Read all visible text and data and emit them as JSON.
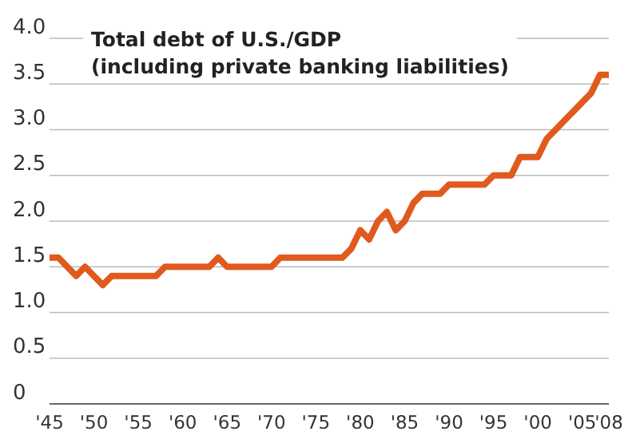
{
  "chart_data": {
    "type": "line",
    "title": "Total debt of U.S./GDP",
    "subtitle": "(including private banking liabilities)",
    "x": [
      1945,
      1946,
      1947,
      1948,
      1949,
      1950,
      1951,
      1952,
      1953,
      1954,
      1955,
      1956,
      1957,
      1958,
      1959,
      1960,
      1961,
      1962,
      1963,
      1964,
      1965,
      1966,
      1967,
      1968,
      1969,
      1970,
      1971,
      1972,
      1973,
      1974,
      1975,
      1976,
      1977,
      1978,
      1979,
      1980,
      1981,
      1982,
      1983,
      1984,
      1985,
      1986,
      1987,
      1988,
      1989,
      1990,
      1991,
      1992,
      1993,
      1994,
      1995,
      1996,
      1997,
      1998,
      1999,
      2000,
      2001,
      2002,
      2003,
      2004,
      2005,
      2006,
      2007,
      2008
    ],
    "series": [
      {
        "color": "#e05a1e",
        "values": [
          1.6,
          1.6,
          1.5,
          1.4,
          1.5,
          1.4,
          1.3,
          1.4,
          1.4,
          1.4,
          1.4,
          1.4,
          1.4,
          1.5,
          1.5,
          1.5,
          1.5,
          1.5,
          1.5,
          1.6,
          1.5,
          1.5,
          1.5,
          1.5,
          1.5,
          1.5,
          1.6,
          1.6,
          1.6,
          1.6,
          1.6,
          1.6,
          1.6,
          1.6,
          1.7,
          1.9,
          1.8,
          2.0,
          2.1,
          1.9,
          2.0,
          2.2,
          2.3,
          2.3,
          2.3,
          2.4,
          2.4,
          2.4,
          2.4,
          2.4,
          2.5,
          2.5,
          2.5,
          2.7,
          2.7,
          2.7,
          2.9,
          3.0,
          3.1,
          3.2,
          3.3,
          3.4,
          3.6,
          3.6
        ]
      }
    ],
    "xlim": [
      1945,
      2008
    ],
    "xticks": [
      {
        "value": 1945,
        "label": "'45"
      },
      {
        "value": 1950,
        "label": "'50"
      },
      {
        "value": 1955,
        "label": "'55"
      },
      {
        "value": 1960,
        "label": "'60"
      },
      {
        "value": 1965,
        "label": "'65"
      },
      {
        "value": 1970,
        "label": "'70"
      },
      {
        "value": 1975,
        "label": "'75"
      },
      {
        "value": 1980,
        "label": "'80"
      },
      {
        "value": 1985,
        "label": "'85"
      },
      {
        "value": 1990,
        "label": "'90"
      },
      {
        "value": 1995,
        "label": "'95"
      },
      {
        "value": 2000,
        "label": "'00"
      },
      {
        "value": 2005,
        "label": "'05"
      },
      {
        "value": 2008,
        "label": "'08"
      }
    ],
    "ylim": [
      0,
      4
    ],
    "yticks": [
      {
        "value": 0,
        "label": "0"
      },
      {
        "value": 0.5,
        "label": "0.5"
      },
      {
        "value": 1,
        "label": "1.0"
      },
      {
        "value": 1.5,
        "label": "1.5"
      },
      {
        "value": 2,
        "label": "2.0"
      },
      {
        "value": 2.5,
        "label": "2.5"
      },
      {
        "value": 3,
        "label": "3.0"
      },
      {
        "value": 3.5,
        "label": "3.5"
      },
      {
        "value": 4,
        "label": "4.0"
      }
    ],
    "grid": "y",
    "marker": "none",
    "line_style": "solid"
  }
}
